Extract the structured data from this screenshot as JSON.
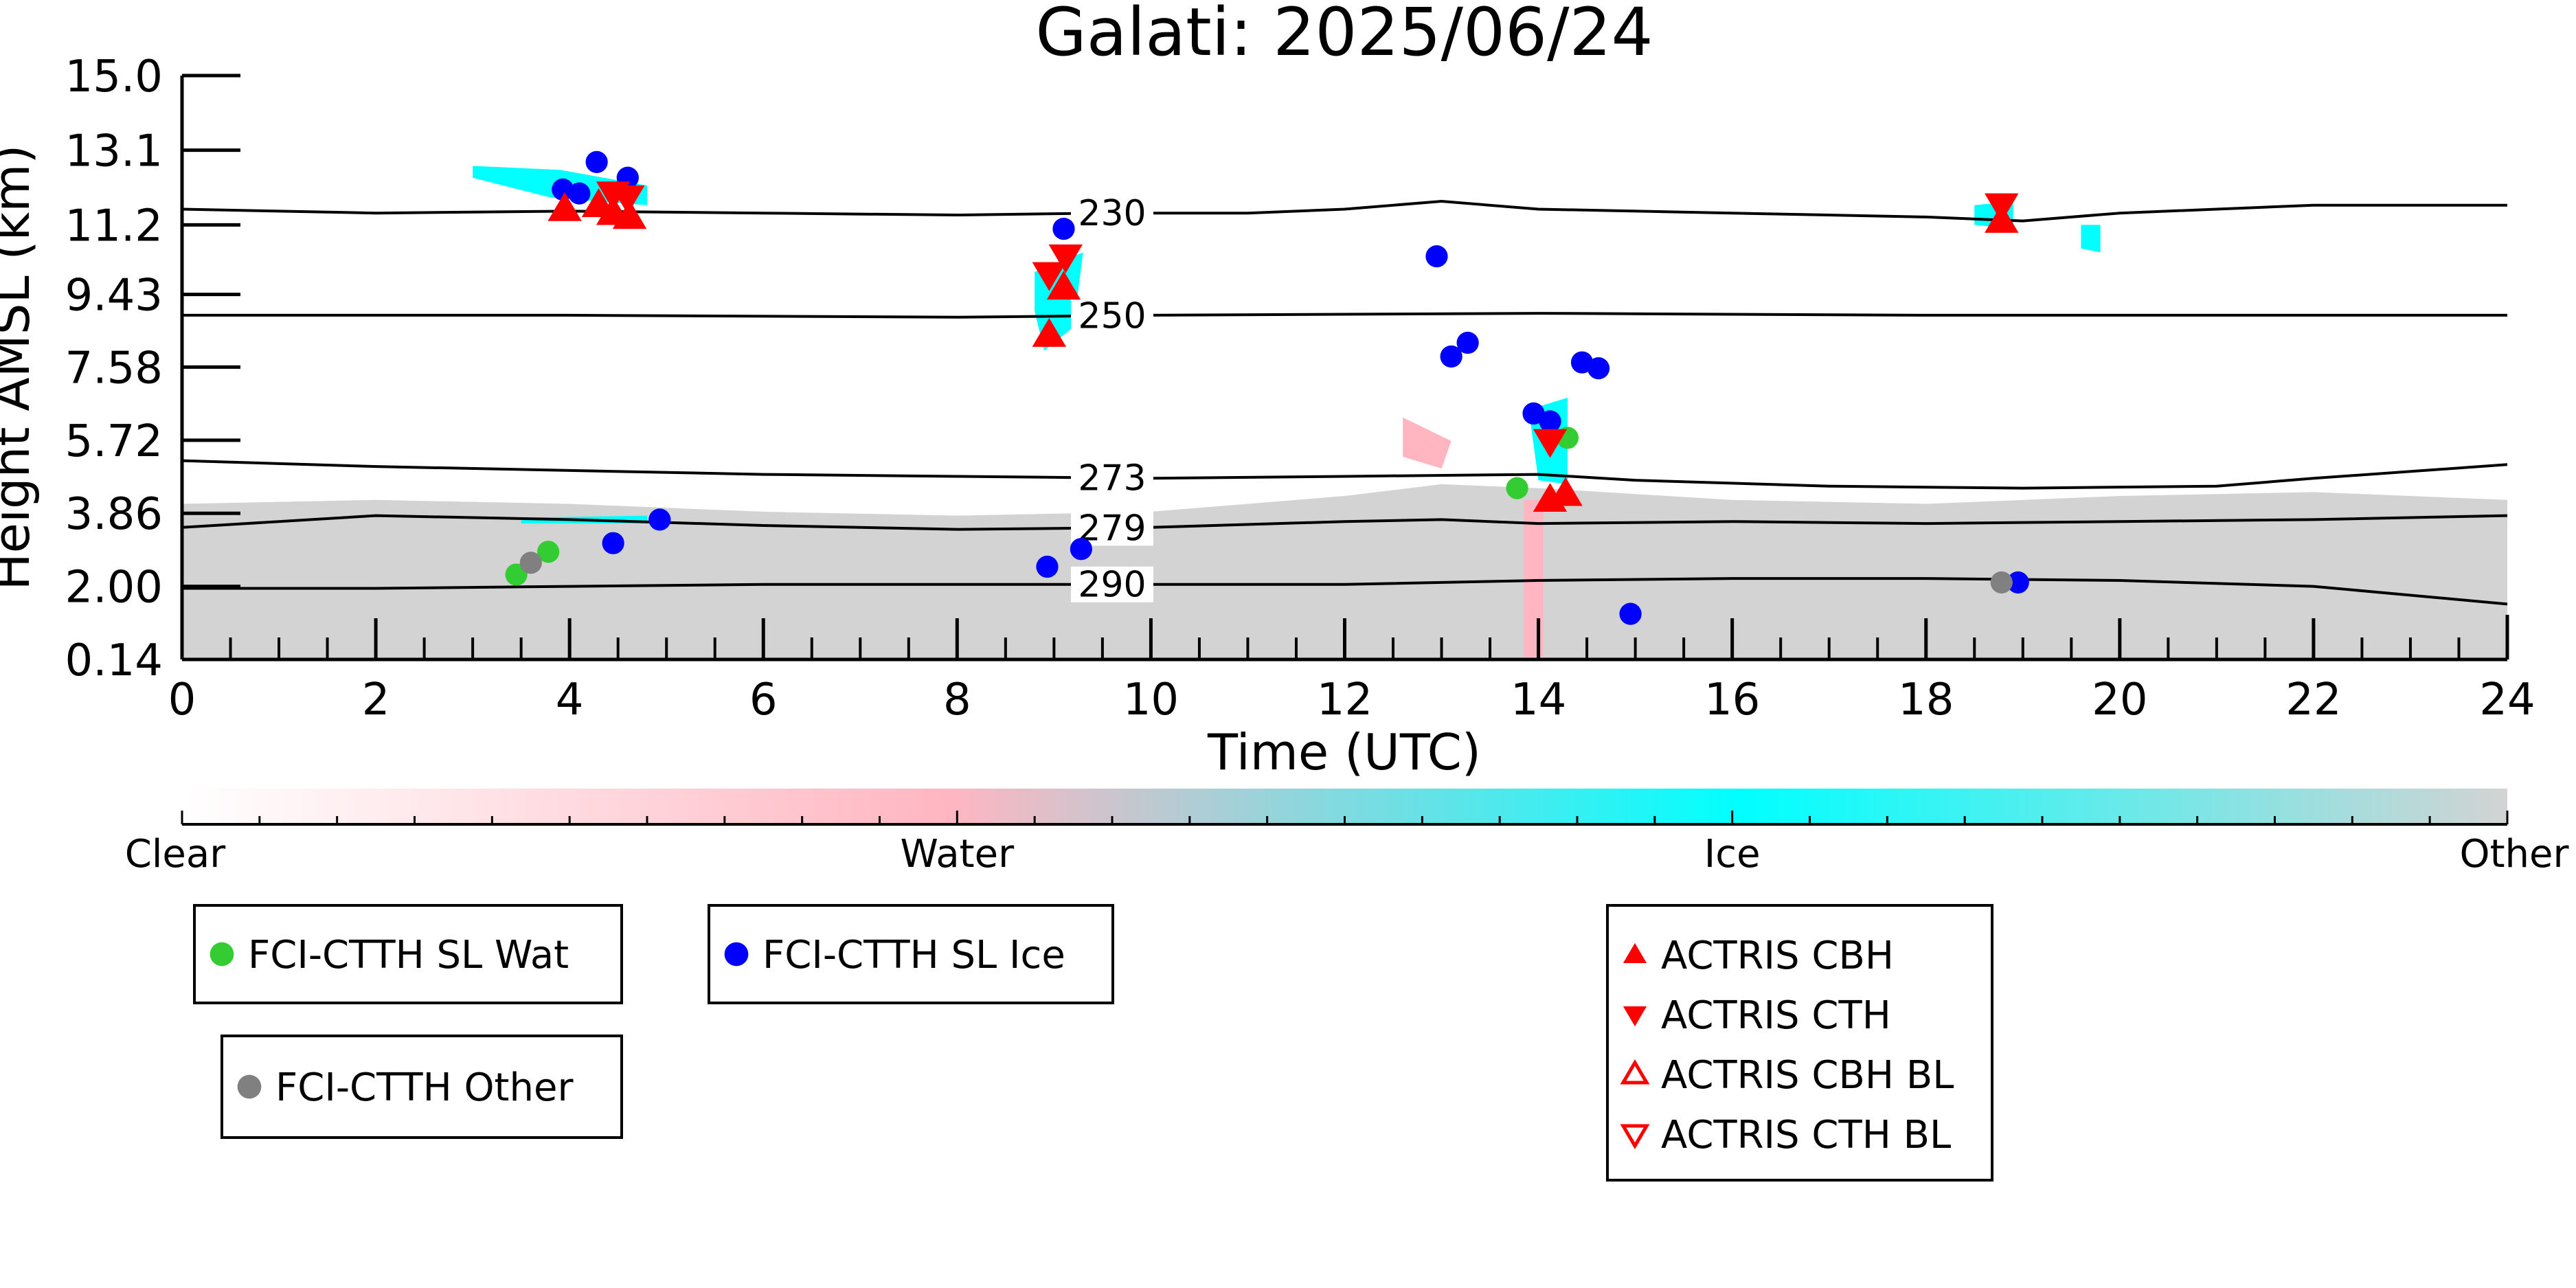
{
  "colors": {
    "water_marker": "#33cc33",
    "ice_marker": "#0000ff",
    "other_marker": "#808080",
    "actris": "#ff0000",
    "mask_other": "#d3d3d3",
    "mask_ice": "#00ffff",
    "mask_water": "#ffb6c1",
    "contour": "#000000"
  },
  "chart_data": {
    "type": "scatter",
    "title": "Galati: 2025/06/24",
    "xlabel": "Time (UTC)",
    "ylabel": "Height AMSL (km)",
    "xlim": [
      0,
      24
    ],
    "ylim": [
      0.14,
      15.0
    ],
    "xticks": [
      0,
      2,
      4,
      6,
      8,
      10,
      12,
      14,
      16,
      18,
      20,
      22,
      24
    ],
    "yticks": [
      0.14,
      2.0,
      3.86,
      5.72,
      7.58,
      9.43,
      11.2,
      13.1,
      15.0
    ],
    "ytick_labels": [
      "0.14",
      "2.00",
      "3.86",
      "5.72",
      "7.58",
      "9.43",
      "11.2",
      "13.1",
      "15.0"
    ],
    "temperature_contours": [
      {
        "label": "230",
        "label_x": 9.6,
        "points": [
          [
            0,
            11.6
          ],
          [
            2,
            11.5
          ],
          [
            4,
            11.55
          ],
          [
            6,
            11.5
          ],
          [
            8,
            11.45
          ],
          [
            9.5,
            11.5
          ],
          [
            11,
            11.5
          ],
          [
            12,
            11.6
          ],
          [
            13,
            11.8
          ],
          [
            14,
            11.6
          ],
          [
            16,
            11.5
          ],
          [
            18,
            11.4
          ],
          [
            19,
            11.3
          ],
          [
            20,
            11.5
          ],
          [
            22,
            11.7
          ],
          [
            24,
            11.7
          ]
        ]
      },
      {
        "label": "250",
        "label_x": 9.6,
        "points": [
          [
            0,
            8.9
          ],
          [
            4,
            8.9
          ],
          [
            8,
            8.85
          ],
          [
            10,
            8.9
          ],
          [
            14,
            8.95
          ],
          [
            18,
            8.9
          ],
          [
            22,
            8.9
          ],
          [
            24,
            8.9
          ]
        ]
      },
      {
        "label": "273",
        "label_x": 9.6,
        "points": [
          [
            0,
            5.2
          ],
          [
            2,
            5.05
          ],
          [
            4,
            4.95
          ],
          [
            6,
            4.85
          ],
          [
            8,
            4.8
          ],
          [
            10,
            4.75
          ],
          [
            12,
            4.8
          ],
          [
            14,
            4.85
          ],
          [
            15,
            4.7
          ],
          [
            17,
            4.55
          ],
          [
            19,
            4.5
          ],
          [
            21,
            4.55
          ],
          [
            22,
            4.75
          ],
          [
            24,
            5.1
          ]
        ]
      },
      {
        "label": "279",
        "label_x": 9.6,
        "points": [
          [
            0,
            3.5
          ],
          [
            2,
            3.8
          ],
          [
            4,
            3.7
          ],
          [
            6,
            3.55
          ],
          [
            8,
            3.45
          ],
          [
            10,
            3.5
          ],
          [
            12,
            3.65
          ],
          [
            13,
            3.7
          ],
          [
            14,
            3.6
          ],
          [
            16,
            3.65
          ],
          [
            18,
            3.6
          ],
          [
            20,
            3.65
          ],
          [
            22,
            3.7
          ],
          [
            24,
            3.8
          ]
        ]
      },
      {
        "label": "290",
        "label_x": 9.6,
        "points": [
          [
            0,
            1.95
          ],
          [
            2,
            1.95
          ],
          [
            4,
            2.0
          ],
          [
            6,
            2.05
          ],
          [
            8,
            2.05
          ],
          [
            10,
            2.05
          ],
          [
            12,
            2.05
          ],
          [
            14,
            2.15
          ],
          [
            16,
            2.2
          ],
          [
            18,
            2.2
          ],
          [
            20,
            2.15
          ],
          [
            22,
            2.0
          ],
          [
            24,
            1.55
          ]
        ]
      }
    ],
    "cloud_mask_regions": [
      {
        "class": "Other",
        "points": [
          [
            0,
            0.14
          ],
          [
            0,
            4.1
          ],
          [
            2,
            4.2
          ],
          [
            4,
            4.1
          ],
          [
            6,
            3.9
          ],
          [
            8,
            3.8
          ],
          [
            10,
            3.9
          ],
          [
            12,
            4.3
          ],
          [
            13,
            4.6
          ],
          [
            14,
            4.5
          ],
          [
            16,
            4.2
          ],
          [
            18,
            4.1
          ],
          [
            20,
            4.3
          ],
          [
            22,
            4.4
          ],
          [
            24,
            4.2
          ],
          [
            24,
            0.14
          ]
        ]
      },
      {
        "class": "Ice",
        "points": [
          [
            3.0,
            12.4
          ],
          [
            3.8,
            11.9
          ],
          [
            4.8,
            11.7
          ],
          [
            4.8,
            12.2
          ],
          [
            3.9,
            12.6
          ],
          [
            3.0,
            12.7
          ]
        ]
      },
      {
        "class": "Ice",
        "points": [
          [
            8.8,
            10.0
          ],
          [
            9.3,
            10.5
          ],
          [
            9.2,
            8.6
          ],
          [
            8.9,
            8.0
          ],
          [
            8.8,
            9.0
          ]
        ]
      },
      {
        "class": "Ice",
        "points": [
          [
            13.9,
            6.5
          ],
          [
            14.3,
            6.8
          ],
          [
            14.3,
            4.6
          ],
          [
            14.0,
            4.7
          ]
        ]
      },
      {
        "class": "Ice",
        "points": [
          [
            18.5,
            11.7
          ],
          [
            18.9,
            11.8
          ],
          [
            18.9,
            11.1
          ],
          [
            18.5,
            11.2
          ]
        ]
      },
      {
        "class": "Ice",
        "points": [
          [
            19.6,
            11.2
          ],
          [
            19.8,
            11.2
          ],
          [
            19.8,
            10.5
          ],
          [
            19.6,
            10.6
          ]
        ]
      },
      {
        "class": "Ice",
        "points": [
          [
            3.5,
            3.75
          ],
          [
            4.8,
            3.8
          ],
          [
            4.8,
            3.6
          ],
          [
            3.5,
            3.6
          ]
        ]
      },
      {
        "class": "Water",
        "points": [
          [
            12.6,
            6.3
          ],
          [
            13.1,
            5.7
          ],
          [
            13.0,
            5.0
          ],
          [
            12.6,
            5.3
          ]
        ]
      },
      {
        "class": "Water",
        "points": [
          [
            13.85,
            4.2
          ],
          [
            14.05,
            4.2
          ],
          [
            14.05,
            0.2
          ],
          [
            13.85,
            0.2
          ]
        ]
      }
    ],
    "series": [
      {
        "name": "FCI-CTTH SL Wat",
        "marker": "circle",
        "color_key": "water_marker",
        "x": [
          3.45,
          3.78,
          13.78,
          14.3
        ],
        "y": [
          2.3,
          2.88,
          4.5,
          5.78
        ]
      },
      {
        "name": "FCI-CTTH SL Ice",
        "marker": "circle",
        "color_key": "ice_marker",
        "x": [
          3.93,
          4.1,
          4.28,
          4.6,
          4.45,
          4.93,
          9.1,
          8.93,
          9.28,
          12.95,
          13.1,
          13.27,
          13.95,
          14.12,
          14.45,
          14.62,
          14.95,
          18.95
        ],
        "y": [
          12.1,
          12.0,
          12.8,
          12.4,
          3.1,
          3.7,
          11.1,
          2.5,
          2.95,
          10.4,
          7.85,
          8.2,
          6.4,
          6.2,
          7.7,
          7.55,
          1.3,
          2.1
        ]
      },
      {
        "name": "FCI-CTTH Other",
        "marker": "circle",
        "color_key": "other_marker",
        "x": [
          3.6,
          18.78
        ],
        "y": [
          2.6,
          2.1
        ]
      },
      {
        "name": "ACTRIS CBH",
        "marker": "triangle-up",
        "color_key": "actris",
        "x": [
          3.95,
          4.3,
          4.45,
          4.62,
          8.95,
          9.1,
          14.12,
          14.28,
          18.78
        ],
        "y": [
          11.6,
          11.7,
          11.5,
          11.4,
          8.4,
          9.6,
          4.2,
          4.35,
          11.3
        ]
      },
      {
        "name": "ACTRIS CTH",
        "marker": "triangle-down",
        "color_key": "actris",
        "x": [
          4.45,
          4.6,
          8.95,
          9.12,
          14.12,
          18.78
        ],
        "y": [
          12.0,
          11.9,
          9.95,
          10.4,
          5.7,
          11.7
        ]
      },
      {
        "name": "ACTRIS CBH BL",
        "marker": "triangle-up-open",
        "color_key": "actris",
        "x": [],
        "y": []
      },
      {
        "name": "ACTRIS CTH BL",
        "marker": "triangle-down-open",
        "color_key": "actris",
        "x": [],
        "y": []
      }
    ],
    "colorbar": {
      "labels": [
        "Clear",
        "Water",
        "Ice",
        "Other"
      ],
      "stops": [
        {
          "pos": 0.0,
          "color": "#ffffff"
        },
        {
          "pos": 0.33,
          "color": "#ffb6c1"
        },
        {
          "pos": 0.67,
          "color": "#00ffff"
        },
        {
          "pos": 1.0,
          "color": "#d3d3d3"
        }
      ]
    },
    "legends": [
      {
        "id": "legend-wat",
        "entries": [
          "FCI-CTTH SL Wat"
        ]
      },
      {
        "id": "legend-ice",
        "entries": [
          "FCI-CTTH SL Ice"
        ]
      },
      {
        "id": "legend-other",
        "entries": [
          "FCI-CTTH Other"
        ]
      },
      {
        "id": "legend-actris",
        "entries": [
          "ACTRIS CBH",
          "ACTRIS CTH",
          "ACTRIS CBH BL",
          "ACTRIS CTH BL"
        ]
      }
    ]
  }
}
